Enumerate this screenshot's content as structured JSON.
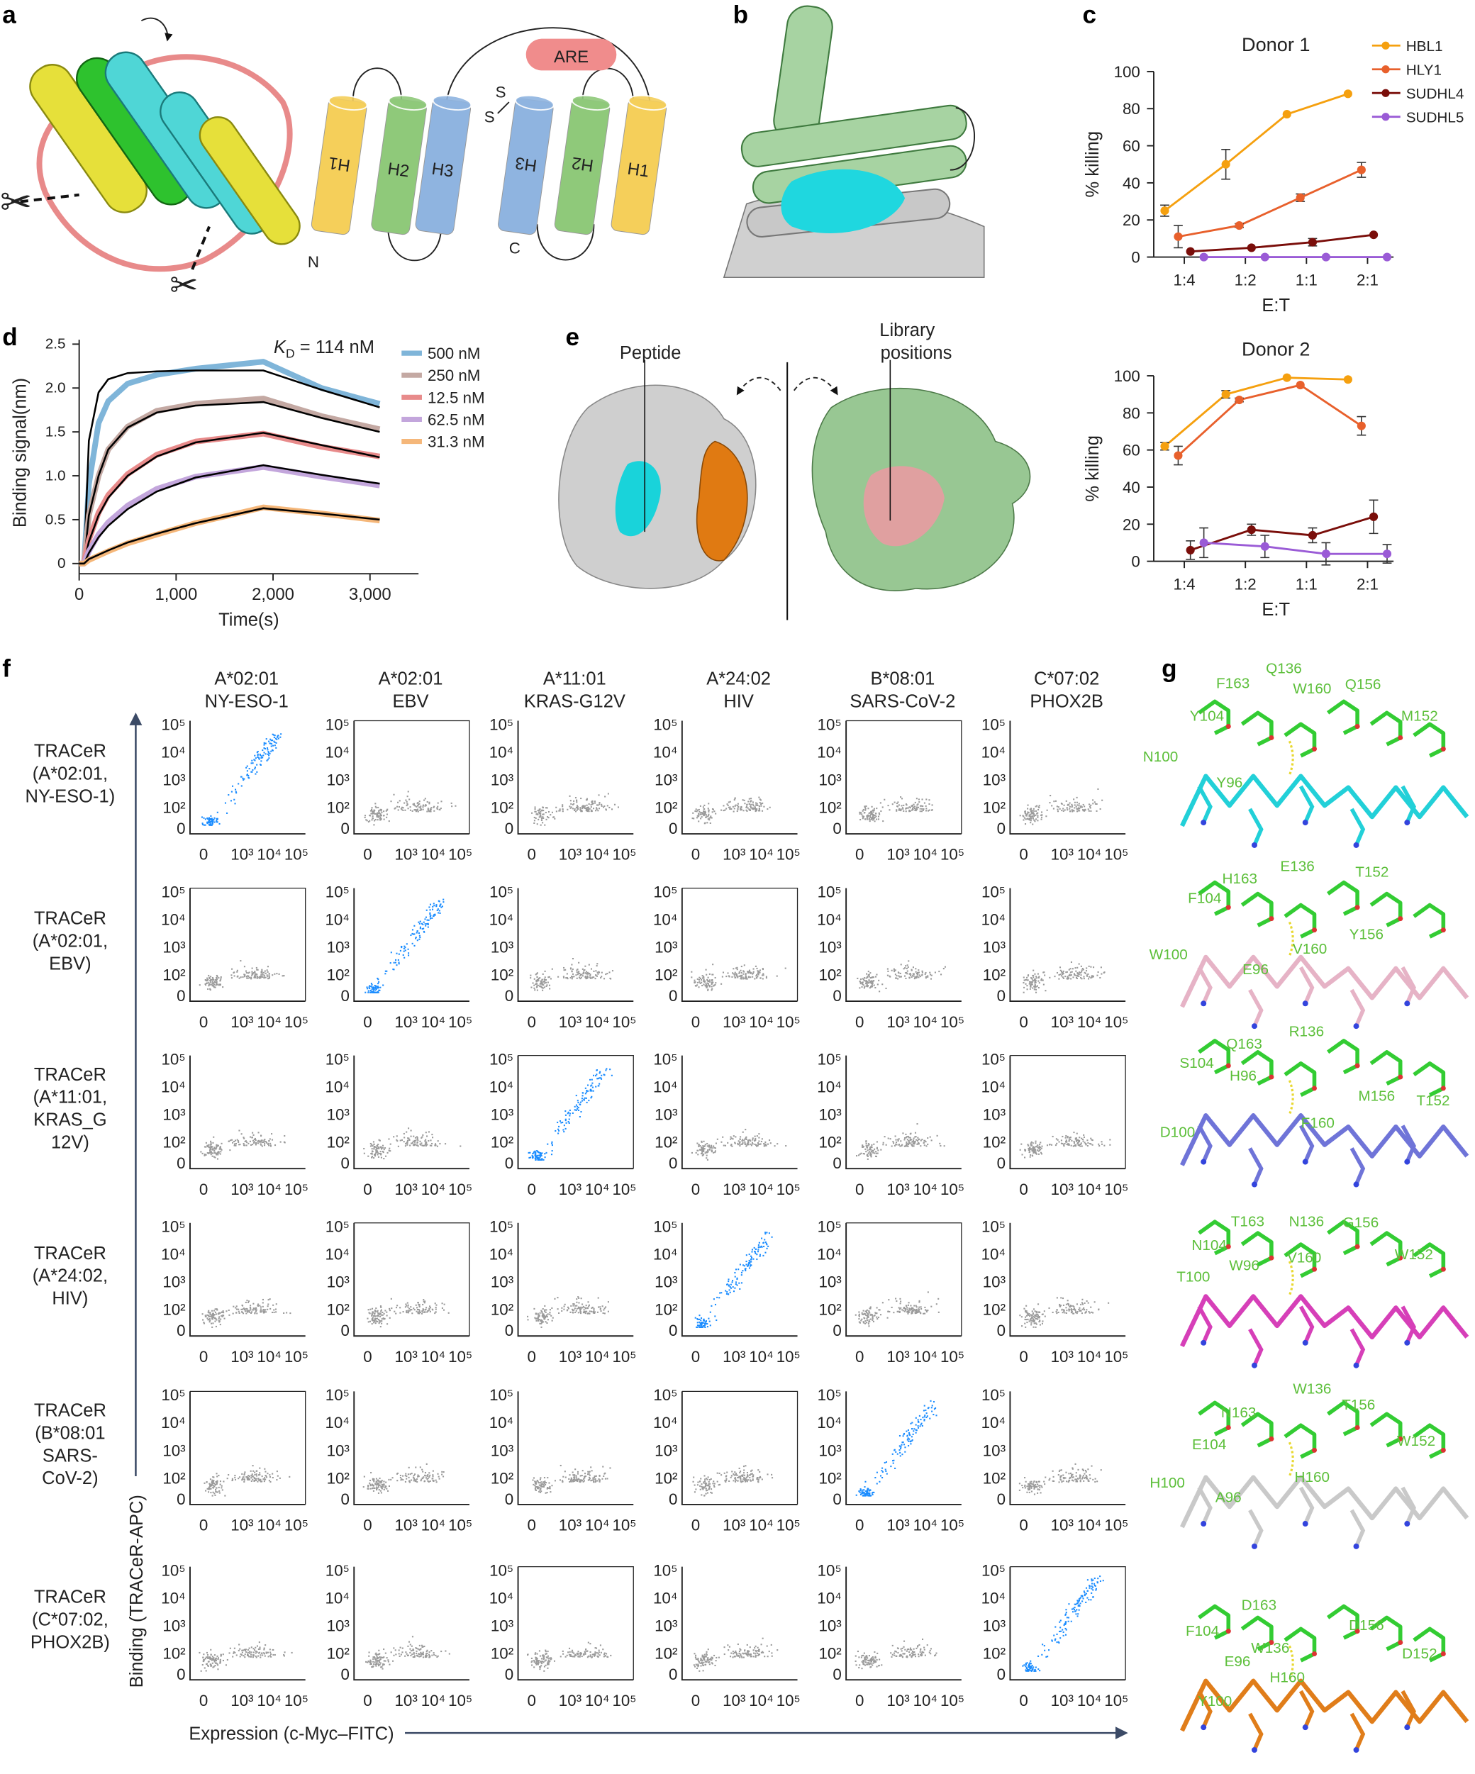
{
  "panel_labels": {
    "a": "a",
    "b": "b",
    "c": "c",
    "d": "d",
    "e": "e",
    "f": "f",
    "g": "g"
  },
  "panel_a": {
    "helix_labels": [
      "H1",
      "H2",
      "H3",
      "H3",
      "H2",
      "H1"
    ],
    "are_label": "ARE",
    "disulfide": [
      "S",
      "S"
    ],
    "n_terminus": "N",
    "c_terminus": "C",
    "icons": [
      "scissors-icon",
      "scissors-icon",
      "curved-arrow-icon"
    ],
    "colors": {
      "H1": "#f5cf5a",
      "H2": "#8fc97a",
      "H3": "#8fb4e0",
      "ARE": "#f08c8c"
    }
  },
  "panel_e": {
    "peptide_label": "Peptide",
    "library_label": [
      "Library",
      "positions"
    ],
    "colors": {
      "peptide": "#19d3da",
      "mhc": "#c8c8c8",
      "b2m": "#e07a12",
      "tracer": "#98c793",
      "library_positions": "#e08a8a"
    }
  },
  "chart_data": [
    {
      "type": "line",
      "title": "Donor 1",
      "xlabel": "E:T",
      "ylabel": "% killing",
      "categories": [
        "1:4",
        "1:2",
        "1:1",
        "2:1"
      ],
      "ylim": [
        0,
        100
      ],
      "yticks": [
        "0",
        "20",
        "40",
        "60",
        "80",
        "100"
      ],
      "legend_placement": "top-right",
      "series": [
        {
          "name": "HBL1",
          "color": "#f5a00f",
          "values": [
            25,
            50,
            77,
            88
          ],
          "error": [
            3,
            8,
            0,
            0
          ]
        },
        {
          "name": "HLY1",
          "color": "#e8602c",
          "values": [
            11,
            17,
            32,
            47
          ],
          "error": [
            6,
            1,
            2,
            4
          ]
        },
        {
          "name": "SUDHL4",
          "color": "#7a0e0a",
          "values": [
            3,
            5,
            8,
            12
          ],
          "error": [
            0,
            0,
            2,
            0
          ]
        },
        {
          "name": "SUDHL5",
          "color": "#9a5bd6",
          "values": [
            0,
            0,
            0,
            0
          ],
          "error": [
            0,
            0,
            0,
            0
          ]
        }
      ]
    },
    {
      "type": "line",
      "title": "Donor 2",
      "xlabel": "E:T",
      "ylabel": "% killing",
      "categories": [
        "1:4",
        "1:2",
        "1:1",
        "2:1"
      ],
      "ylim": [
        0,
        100
      ],
      "yticks": [
        "0",
        "20",
        "40",
        "60",
        "80",
        "100"
      ],
      "series": [
        {
          "name": "HBL1",
          "color": "#f5a00f",
          "values": [
            62,
            90,
            99,
            98
          ],
          "error": [
            2,
            2,
            0,
            0
          ]
        },
        {
          "name": "HLY1",
          "color": "#e8602c",
          "values": [
            57,
            87,
            95,
            73
          ],
          "error": [
            5,
            1,
            0,
            5
          ]
        },
        {
          "name": "SUDHL4",
          "color": "#7a0e0a",
          "values": [
            6,
            17,
            14,
            24
          ],
          "error": [
            5,
            3,
            4,
            9
          ]
        },
        {
          "name": "SUDHL5",
          "color": "#9a5bd6",
          "values": [
            10,
            8,
            4,
            4
          ],
          "error": [
            8,
            6,
            6,
            5
          ]
        }
      ]
    },
    {
      "type": "line",
      "xlabel": "Time(s)",
      "ylabel": "Binding signal(nm)",
      "annotation": {
        "k": "K",
        "sub": "D",
        "rest": " = 114 nM"
      },
      "xlim": [
        0,
        3500
      ],
      "ylim": [
        0,
        2.5
      ],
      "xticks": [
        {
          "v": 0,
          "label": "0"
        },
        {
          "v": 1000,
          "label": "1,000"
        },
        {
          "v": 2000,
          "label": "2,000"
        },
        {
          "v": 3000,
          "label": "3,000"
        }
      ],
      "yticks": [
        {
          "v": 0,
          "label": "0"
        },
        {
          "v": 0.5,
          "label": "0.5"
        },
        {
          "v": 1,
          "label": "1.0"
        },
        {
          "v": 1.5,
          "label": "1.5"
        },
        {
          "v": 2,
          "label": "2.0"
        },
        {
          "v": 2.5,
          "label": "2.5"
        }
      ],
      "legend_placement": "right",
      "x": [
        50,
        100,
        200,
        300,
        500,
        800,
        1200,
        1900,
        2500,
        3100
      ],
      "series": [
        {
          "name": "500 nM",
          "color": "#7fb5d9",
          "values": [
            0,
            0.9,
            1.6,
            1.85,
            2.05,
            2.15,
            2.22,
            2.3,
            2.0,
            1.82
          ],
          "fit": [
            0,
            1.4,
            1.95,
            2.1,
            2.17,
            2.19,
            2.2,
            2.2,
            1.98,
            1.78
          ]
        },
        {
          "name": "250 nM",
          "color": "#c4a9a3",
          "values": [
            0,
            0.55,
            1.0,
            1.3,
            1.56,
            1.74,
            1.82,
            1.88,
            1.68,
            1.53
          ],
          "fit": [
            0,
            0.55,
            1.0,
            1.3,
            1.55,
            1.72,
            1.8,
            1.84,
            1.66,
            1.5
          ]
        },
        {
          "name": "12.5 nM",
          "color": "#e88b8b",
          "values": [
            0,
            0.27,
            0.58,
            0.78,
            1.02,
            1.24,
            1.39,
            1.48,
            1.33,
            1.22
          ],
          "fit": [
            0,
            0.25,
            0.55,
            0.75,
            1.0,
            1.22,
            1.38,
            1.49,
            1.35,
            1.21
          ]
        },
        {
          "name": "62.5 nM",
          "color": "#c3a6dc",
          "values": [
            0,
            0.14,
            0.33,
            0.47,
            0.66,
            0.85,
            0.99,
            1.1,
            0.99,
            0.89
          ],
          "fit": [
            0,
            0.12,
            0.3,
            0.43,
            0.62,
            0.82,
            0.98,
            1.12,
            1.01,
            0.91
          ]
        },
        {
          "name": "31.3 nM",
          "color": "#f5b77a",
          "values": [
            0,
            0.04,
            0.09,
            0.14,
            0.23,
            0.33,
            0.46,
            0.64,
            0.57,
            0.49
          ],
          "fit": [
            0,
            0.05,
            0.1,
            0.15,
            0.24,
            0.34,
            0.46,
            0.63,
            0.57,
            0.5
          ]
        }
      ]
    }
  ],
  "panel_f": {
    "columns": [
      [
        "A*02:01",
        "NY-ESO-1"
      ],
      [
        "A*02:01",
        "EBV"
      ],
      [
        "A*11:01",
        "KRAS-G12V"
      ],
      [
        "A*24:02",
        "HIV"
      ],
      [
        "B*08:01",
        "SARS-CoV-2"
      ],
      [
        "C*07:02",
        "PHOX2B"
      ]
    ],
    "rows": [
      [
        "TRACeR",
        "(A*02:01,",
        "NY-ESO-1)"
      ],
      [
        "TRACeR",
        "(A*02:01,",
        "EBV)"
      ],
      [
        "TRACeR",
        "(A*11:01,",
        "KRAS_G",
        "12V)"
      ],
      [
        "TRACeR",
        "(A*24:02,",
        "HIV)"
      ],
      [
        "TRACeR",
        "(B*08:01",
        "SARS-",
        "CoV-2)"
      ],
      [
        "TRACeR",
        "(C*07:02,",
        "PHOX2B)"
      ]
    ],
    "y_ticks": [
      "10⁵",
      "10⁴",
      "10³",
      "10²",
      "0"
    ],
    "x_ticks": [
      "0",
      "10³",
      "10⁴",
      "10⁵"
    ],
    "y_axis_label": "Binding (TRACeR-APC)",
    "x_axis_label": "Expression (c-Myc–FITC)",
    "binding_matrix": [
      [
        1,
        0,
        0,
        0,
        0,
        0
      ],
      [
        0,
        1,
        0,
        0,
        0,
        0
      ],
      [
        0,
        0,
        1,
        0,
        0,
        0
      ],
      [
        0,
        0,
        0,
        1,
        0,
        0
      ],
      [
        0,
        0,
        0,
        0,
        1,
        0
      ],
      [
        0,
        0,
        0,
        0,
        0,
        1
      ]
    ],
    "colors": {
      "binding": "#1a8cff",
      "non_binding": "#9a9a9a"
    }
  },
  "panel_g": {
    "groups": [
      {
        "peptide_color": "#22d0d8",
        "residues": [
          "F163",
          "Q136",
          "W160",
          "Q156",
          "M152",
          "Y104",
          "N100",
          "Y96"
        ]
      },
      {
        "peptide_color": "#e6b3c6",
        "residues": [
          "H163",
          "E136",
          "T152",
          "F104",
          "V160",
          "Y156",
          "E96",
          "W100"
        ]
      },
      {
        "peptide_color": "#6f74d8",
        "residues": [
          "Q163",
          "R136",
          "S104",
          "H96",
          "M156",
          "T152",
          "F160",
          "D100"
        ]
      },
      {
        "peptide_color": "#d63fb8",
        "residues": [
          "T163",
          "N136",
          "G156",
          "N104",
          "W152",
          "V160",
          "W96",
          "T100"
        ]
      },
      {
        "peptide_color": "#c9c9c9",
        "residues": [
          "W136",
          "N163",
          "T156",
          "W152",
          "E104",
          "H100",
          "A96",
          "H160"
        ]
      },
      {
        "peptide_color": "#e07d1a",
        "residues": [
          "D163",
          "F104",
          "D156",
          "W136",
          "D152",
          "E96",
          "H160",
          "Y100"
        ]
      }
    ],
    "tracer_color": "#33cc33"
  }
}
